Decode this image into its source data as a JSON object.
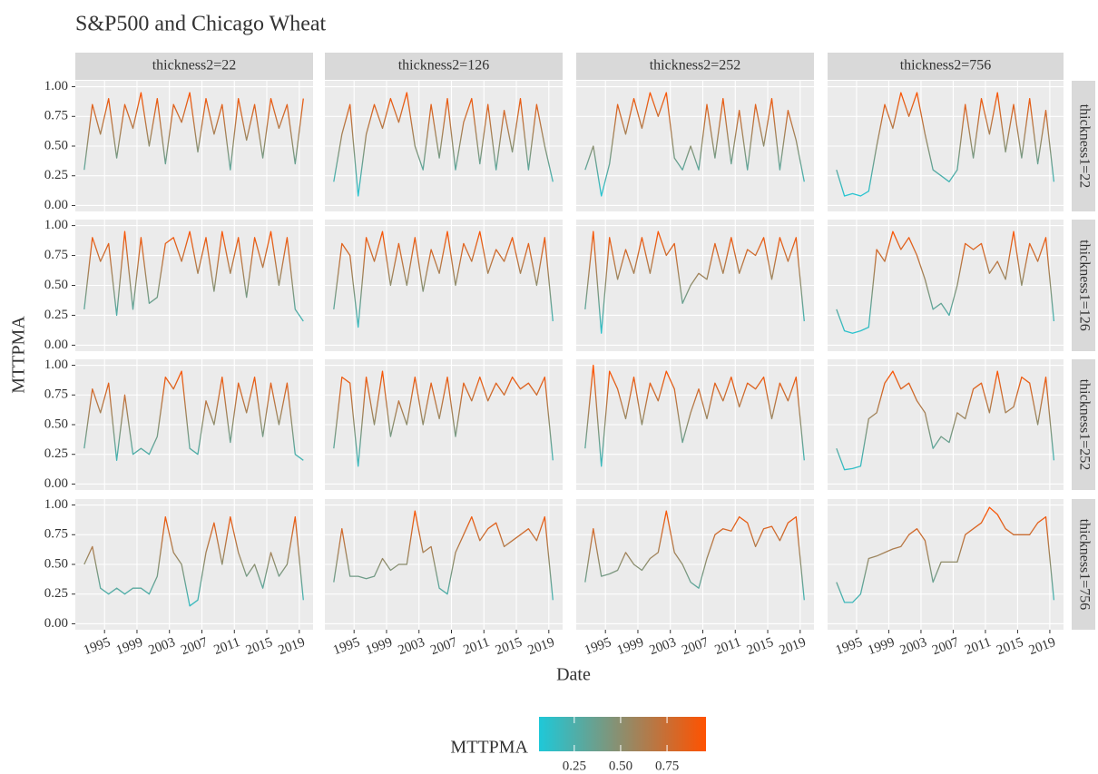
{
  "chart_data": {
    "type": "line",
    "title": "S&P500 and Chicago Wheat",
    "x_label": "Date",
    "y_label": "MTTPMA",
    "col_labels": [
      "thickness2=22",
      "thickness2=126",
      "thickness2=252",
      "thickness2=756"
    ],
    "row_labels": [
      "thickness1=22",
      "thickness1=126",
      "thickness1=252",
      "thickness1=756"
    ],
    "xlim": [
      1991.4,
      2020.7
    ],
    "xticks": [
      1995,
      1999,
      2003,
      2007,
      2011,
      2015,
      2019
    ],
    "ylim": [
      -0.05,
      1.05
    ],
    "yticks": [
      {
        "value": 0,
        "label": "0.00"
      },
      0.25,
      {
        "value": 0.5,
        "label": "0.50"
      },
      0.75,
      {
        "value": 1,
        "label": "1.00"
      }
    ],
    "grid": true,
    "colorbar": {
      "title": "MTTPMA",
      "lim": [
        0.06,
        0.96
      ],
      "colors": [
        "#1ec8d8",
        "#ff5200"
      ],
      "ticks": [
        0.25,
        {
          "value": 0.5,
          "label": "0.50"
        },
        0.75
      ]
    },
    "x": [
      1992.5,
      1993.5,
      1994.5,
      1995.5,
      1996.5,
      1997.5,
      1998.5,
      1999.5,
      2000.5,
      2001.5,
      2002.5,
      2003.5,
      2004.5,
      2005.5,
      2006.5,
      2007.5,
      2008.5,
      2009.5,
      2010.5,
      2011.5,
      2012.5,
      2013.5,
      2014.5,
      2015.5,
      2016.5,
      2017.5,
      2018.5,
      2019.5
    ],
    "panels": [
      [
        {
          "values": [
            0.3,
            0.85,
            0.6,
            0.9,
            0.4,
            0.85,
            0.65,
            0.95,
            0.5,
            0.9,
            0.35,
            0.85,
            0.7,
            0.95,
            0.45,
            0.9,
            0.6,
            0.85,
            0.3,
            0.9,
            0.55,
            0.85,
            0.4,
            0.9,
            0.65,
            0.85,
            0.35,
            0.9
          ]
        },
        {
          "values": [
            0.2,
            0.6,
            0.85,
            0.08,
            0.6,
            0.85,
            0.65,
            0.9,
            0.7,
            0.95,
            0.5,
            0.3,
            0.85,
            0.4,
            0.9,
            0.3,
            0.7,
            0.9,
            0.35,
            0.85,
            0.3,
            0.8,
            0.45,
            0.9,
            0.3,
            0.85,
            0.5,
            0.2
          ]
        },
        {
          "values": [
            0.3,
            0.5,
            0.08,
            0.35,
            0.85,
            0.6,
            0.9,
            0.65,
            0.95,
            0.75,
            0.95,
            0.4,
            0.3,
            0.5,
            0.3,
            0.85,
            0.4,
            0.9,
            0.35,
            0.8,
            0.3,
            0.85,
            0.5,
            0.9,
            0.3,
            0.8,
            0.55,
            0.2
          ]
        },
        {
          "values": [
            0.3,
            0.08,
            0.1,
            0.08,
            0.12,
            0.5,
            0.85,
            0.65,
            0.95,
            0.75,
            0.95,
            0.6,
            0.3,
            0.25,
            0.2,
            0.3,
            0.85,
            0.4,
            0.9,
            0.6,
            0.95,
            0.45,
            0.85,
            0.4,
            0.9,
            0.35,
            0.8,
            0.2
          ]
        }
      ],
      [
        {
          "values": [
            0.3,
            0.9,
            0.7,
            0.85,
            0.25,
            0.95,
            0.3,
            0.9,
            0.35,
            0.4,
            0.85,
            0.9,
            0.7,
            0.95,
            0.6,
            0.9,
            0.45,
            0.95,
            0.6,
            0.9,
            0.4,
            0.9,
            0.65,
            0.95,
            0.5,
            0.9,
            0.3,
            0.2
          ]
        },
        {
          "values": [
            0.3,
            0.85,
            0.75,
            0.15,
            0.9,
            0.7,
            0.95,
            0.5,
            0.85,
            0.5,
            0.9,
            0.45,
            0.8,
            0.6,
            0.95,
            0.5,
            0.85,
            0.7,
            0.95,
            0.6,
            0.8,
            0.7,
            0.9,
            0.6,
            0.85,
            0.5,
            0.9,
            0.2
          ]
        },
        {
          "values": [
            0.3,
            0.95,
            0.1,
            0.9,
            0.55,
            0.8,
            0.6,
            0.9,
            0.6,
            0.95,
            0.75,
            0.85,
            0.35,
            0.5,
            0.6,
            0.55,
            0.85,
            0.6,
            0.9,
            0.6,
            0.8,
            0.75,
            0.9,
            0.55,
            0.9,
            0.7,
            0.9,
            0.2
          ]
        },
        {
          "values": [
            0.3,
            0.12,
            0.1,
            0.12,
            0.15,
            0.8,
            0.7,
            0.95,
            0.8,
            0.9,
            0.75,
            0.55,
            0.3,
            0.35,
            0.25,
            0.5,
            0.85,
            0.8,
            0.85,
            0.6,
            0.7,
            0.55,
            0.95,
            0.5,
            0.85,
            0.7,
            0.9,
            0.2
          ]
        }
      ],
      [
        {
          "values": [
            0.3,
            0.8,
            0.6,
            0.85,
            0.2,
            0.75,
            0.25,
            0.3,
            0.25,
            0.4,
            0.9,
            0.8,
            0.95,
            0.3,
            0.25,
            0.7,
            0.5,
            0.9,
            0.35,
            0.85,
            0.6,
            0.9,
            0.4,
            0.85,
            0.5,
            0.85,
            0.25,
            0.2
          ]
        },
        {
          "values": [
            0.3,
            0.9,
            0.85,
            0.15,
            0.9,
            0.5,
            0.95,
            0.4,
            0.7,
            0.5,
            0.9,
            0.5,
            0.85,
            0.55,
            0.9,
            0.4,
            0.85,
            0.7,
            0.9,
            0.7,
            0.85,
            0.75,
            0.9,
            0.8,
            0.85,
            0.75,
            0.9,
            0.2
          ]
        },
        {
          "values": [
            0.3,
            1.0,
            0.15,
            0.95,
            0.8,
            0.55,
            0.9,
            0.5,
            0.85,
            0.7,
            0.95,
            0.8,
            0.35,
            0.6,
            0.8,
            0.55,
            0.85,
            0.7,
            0.9,
            0.65,
            0.85,
            0.8,
            0.9,
            0.55,
            0.85,
            0.7,
            0.9,
            0.2
          ]
        },
        {
          "values": [
            0.3,
            0.12,
            0.13,
            0.15,
            0.55,
            0.6,
            0.85,
            0.95,
            0.8,
            0.85,
            0.7,
            0.6,
            0.3,
            0.4,
            0.35,
            0.6,
            0.55,
            0.8,
            0.85,
            0.6,
            0.95,
            0.6,
            0.65,
            0.9,
            0.85,
            0.5,
            0.9,
            0.2
          ]
        }
      ],
      [
        {
          "values": [
            0.5,
            0.65,
            0.3,
            0.25,
            0.3,
            0.25,
            0.3,
            0.3,
            0.25,
            0.4,
            0.9,
            0.6,
            0.5,
            0.15,
            0.2,
            0.6,
            0.85,
            0.5,
            0.9,
            0.6,
            0.4,
            0.5,
            0.3,
            0.6,
            0.4,
            0.5,
            0.9,
            0.2
          ]
        },
        {
          "values": [
            0.35,
            0.8,
            0.4,
            0.4,
            0.38,
            0.4,
            0.55,
            0.45,
            0.5,
            0.5,
            0.95,
            0.6,
            0.65,
            0.3,
            0.25,
            0.6,
            0.75,
            0.9,
            0.7,
            0.8,
            0.85,
            0.65,
            0.7,
            0.75,
            0.8,
            0.7,
            0.9,
            0.2
          ]
        },
        {
          "values": [
            0.35,
            0.8,
            0.4,
            0.42,
            0.45,
            0.6,
            0.5,
            0.45,
            0.55,
            0.6,
            0.95,
            0.6,
            0.5,
            0.35,
            0.3,
            0.55,
            0.75,
            0.8,
            0.78,
            0.9,
            0.85,
            0.65,
            0.8,
            0.82,
            0.7,
            0.85,
            0.9,
            0.2
          ]
        },
        {
          "values": [
            0.35,
            0.18,
            0.18,
            0.25,
            0.55,
            0.57,
            0.6,
            0.63,
            0.65,
            0.75,
            0.8,
            0.7,
            0.35,
            0.52,
            0.52,
            0.52,
            0.75,
            0.8,
            0.85,
            0.98,
            0.92,
            0.8,
            0.75,
            0.75,
            0.75,
            0.85,
            0.9,
            0.2
          ]
        }
      ]
    ]
  }
}
